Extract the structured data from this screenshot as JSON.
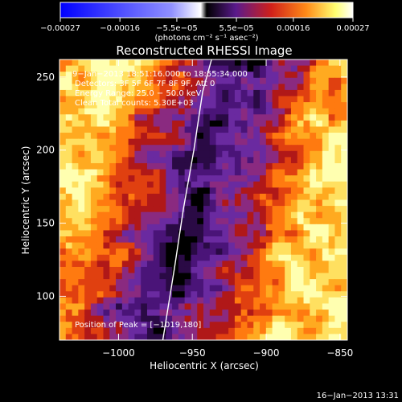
{
  "chart_data": {
    "type": "heatmap",
    "title": "Reconstructed RHESSI Image",
    "xlabel": "Heliocentric X (arcsec)",
    "ylabel": "Heliocentric Y (arcsec)",
    "xlim": [
      -1040,
      -845
    ],
    "ylim": [
      70,
      262
    ],
    "xticks": [
      {
        "value": -1000,
        "label": "−1000"
      },
      {
        "value": -950,
        "label": "−950"
      },
      {
        "value": -900,
        "label": "−900"
      },
      {
        "value": -850,
        "label": "−850"
      }
    ],
    "yticks": [
      {
        "value": 100,
        "label": "100"
      },
      {
        "value": 150,
        "label": "150"
      },
      {
        "value": 200,
        "label": "200"
      },
      {
        "value": 250,
        "label": "250"
      }
    ],
    "colorbar": {
      "min": -0.00027,
      "max": 0.00027,
      "ticks": [
        {
          "value": -0.00027,
          "label": "−0.00027"
        },
        {
          "value": -0.00016,
          "label": "−0.00016"
        },
        {
          "value": -5.5e-05,
          "label": "−5.5e−05"
        },
        {
          "value": 5.5e-05,
          "label": "5.5e−05"
        },
        {
          "value": 0.00016,
          "label": "0.00016"
        },
        {
          "value": 0.00027,
          "label": "0.00027"
        }
      ],
      "unit_label": "(photons cm⁻² s⁻¹ asec⁻²)",
      "colors": [
        "#0000ff",
        "#ffffff",
        "#000000",
        "#5a1a8c",
        "#e0301e",
        "#ff9a20",
        "#ffff70",
        "#ffffff"
      ]
    },
    "annotations": [
      "9−Jan−2013 18:51:16.000 to 18:55:34.000",
      "Detectors: 3F 5F 6F 7F 8F 9F, Att 0",
      "Energy Range: 25.0 − 50.0 keV",
      "Clean     Total counts: 5.30E+03"
    ],
    "peak_label": "Position of Peak = [−1019,180]",
    "limb_curve": [
      {
        "x": -970,
        "y": 70
      },
      {
        "x": -962,
        "y": 120
      },
      {
        "x": -956,
        "y": 160
      },
      {
        "x": -949,
        "y": 200
      },
      {
        "x": -943,
        "y": 240
      },
      {
        "x": -937,
        "y": 262
      }
    ],
    "colors": {
      "limb": "#ffffff",
      "background": "#000000"
    }
  },
  "footer_timestamp": "16−Jan−2013 13:31"
}
